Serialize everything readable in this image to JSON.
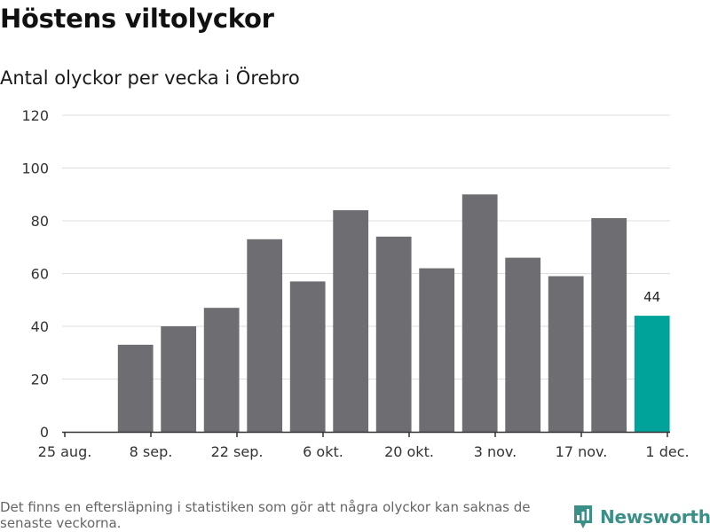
{
  "title": "Höstens viltolyckor",
  "subtitle": "Antal olyckor per vecka i Örebro",
  "footnote": "Det finns en eftersläpning i statistiken som gör att några olyckor kan saknas de senaste veckorna.",
  "brand": {
    "name": "Newsworthy",
    "icon": "newsworthy-logo-icon",
    "color": "#3a8f87"
  },
  "chart_data": {
    "type": "bar",
    "title": "Höstens viltolyckor",
    "subtitle": "Antal olyckor per vecka i Örebro",
    "xlabel": "",
    "ylabel": "",
    "ylim": [
      0,
      120
    ],
    "yticks": [
      0,
      20,
      40,
      60,
      80,
      100,
      120
    ],
    "grid": true,
    "legend": "none",
    "x_tick_labels": [
      "25 aug.",
      "8 sep.",
      "22 sep.",
      "6 okt.",
      "20 okt.",
      "3 nov.",
      "17 nov.",
      "1 dec."
    ],
    "categories": [
      "2019-09-02",
      "2019-09-09",
      "2019-09-16",
      "2019-09-23",
      "2019-09-30",
      "2019-10-07",
      "2019-10-14",
      "2019-10-21",
      "2019-10-28",
      "2019-11-04",
      "2019-11-11",
      "2019-11-18",
      "2019-11-25"
    ],
    "values": [
      33,
      40,
      47,
      73,
      57,
      84,
      74,
      62,
      90,
      66,
      59,
      81,
      44
    ],
    "colors": {
      "default": "#6e6d72",
      "highlight": "#00a39a"
    },
    "highlight_index": 12,
    "data_labels": [
      {
        "index": 12,
        "text": "44"
      }
    ]
  }
}
